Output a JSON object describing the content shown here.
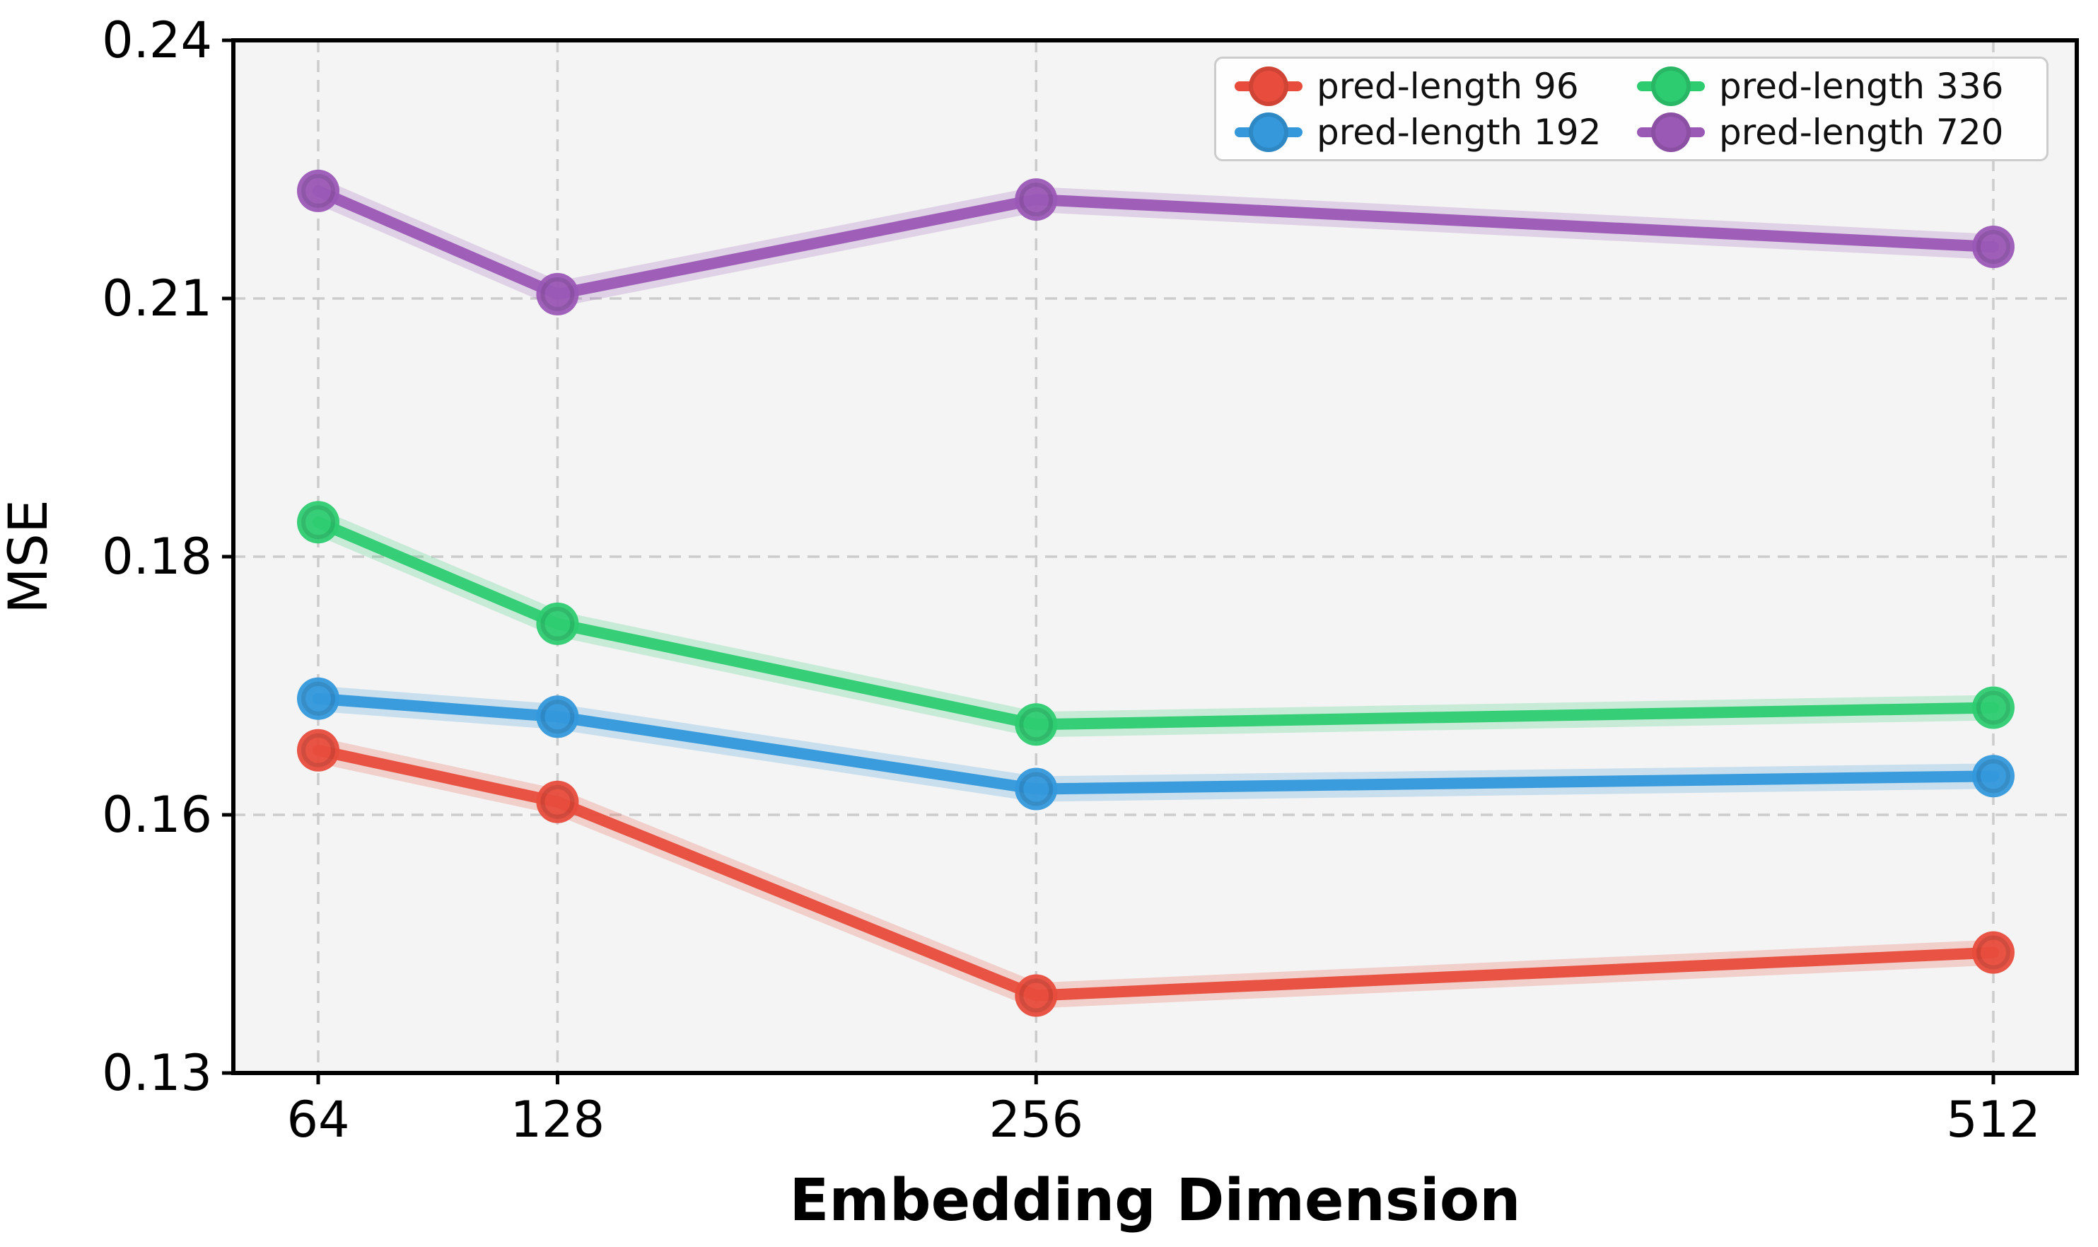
{
  "figure": {
    "background": "#ffffff",
    "plot_background": "#f4f4f4",
    "grid_color": "#cccccc",
    "spine_color": "#000000",
    "text_color": "#000000",
    "marker_ring_color": "rgba(0,0,0,0.10)"
  },
  "chart_data": {
    "type": "line",
    "title": "",
    "xlabel": "Embedding Dimension",
    "ylabel": "MSE",
    "categories": [
      64,
      128,
      256,
      512
    ],
    "xtick_labels": [
      "64",
      "128",
      "256",
      "512"
    ],
    "ytick_labels": [
      "0.24",
      "0.21",
      "0.18",
      "0.16",
      "0.13"
    ],
    "ytick_values": [
      0.24,
      0.21,
      0.18,
      0.16,
      0.13
    ],
    "ylim": [
      0.13,
      0.24
    ],
    "axis_notes": "y ticks rendered at equal pixel spacing; x axis linear from ~41 to ~534 with ticks at 64/128/256/512; grid dashed; horizontal gridlines at 0.21, 0.18, 0.16",
    "legend_position": "upper right, 2 columns",
    "series": [
      {
        "label": "pred-length 96",
        "color": "#e74c3c",
        "values": [
          0.165,
          0.161,
          0.139,
          0.144
        ]
      },
      {
        "label": "pred-length 192",
        "color": "#3498db",
        "values": [
          0.169,
          0.1676,
          0.162,
          0.163
        ]
      },
      {
        "label": "pred-length 336",
        "color": "#2ecc71",
        "values": [
          0.184,
          0.1748,
          0.167,
          0.1683
        ]
      },
      {
        "label": "pred-length 720",
        "color": "#9b59b6",
        "values": [
          0.2225,
          0.2105,
          0.2215,
          0.216
        ]
      }
    ]
  }
}
